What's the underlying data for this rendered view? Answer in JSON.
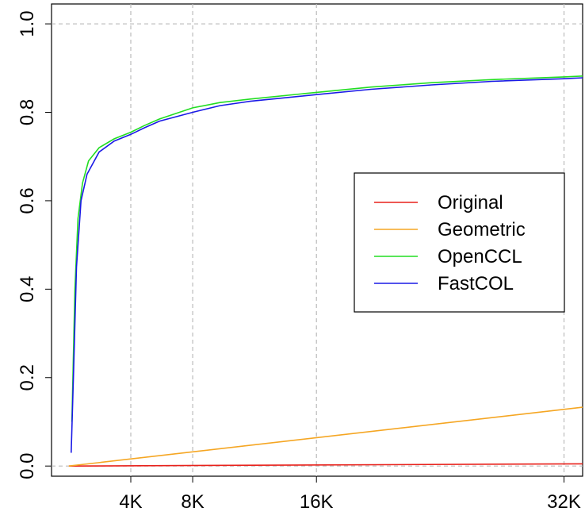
{
  "chart_data": {
    "type": "line",
    "xlim": [
      -1150,
      34000
    ],
    "ylim": [
      -0.023,
      1.045
    ],
    "xticks": [
      {
        "value": 4096,
        "label": "4K"
      },
      {
        "value": 8192,
        "label": "8K"
      },
      {
        "value": 16384,
        "label": "16K"
      },
      {
        "value": 32768,
        "label": "32K"
      }
    ],
    "yticks": [
      {
        "value": 0,
        "label": "0.0"
      },
      0.2,
      0.4,
      0.6,
      0.8,
      {
        "value": 1,
        "label": "1.0"
      }
    ],
    "h_reference_lines": [
      0,
      1
    ],
    "grid": true,
    "legend_position": "right",
    "series": [
      {
        "name": "Original",
        "color": "#e8211b",
        "x": [
          0,
          34000
        ],
        "values": [
          0,
          0.005
        ]
      },
      {
        "name": "Geometric",
        "color": "#f5a623",
        "x": [
          0,
          34000
        ],
        "values": [
          0,
          0.133
        ]
      },
      {
        "name": "OpenCCL",
        "color": "#22dd22",
        "x": [
          200,
          400,
          600,
          900,
          1300,
          2000,
          3000,
          4096,
          5000,
          6000,
          8192,
          10000,
          12000,
          16384,
          20000,
          24000,
          28000,
          32768,
          34000
        ],
        "values": [
          0.1,
          0.4,
          0.56,
          0.64,
          0.69,
          0.72,
          0.74,
          0.755,
          0.77,
          0.785,
          0.81,
          0.822,
          0.83,
          0.845,
          0.857,
          0.867,
          0.874,
          0.88,
          0.882
        ]
      },
      {
        "name": "FastCOL",
        "color": "#1a1ae6",
        "x": [
          150,
          300,
          500,
          800,
          1200,
          2000,
          3000,
          4096,
          5000,
          6000,
          8192,
          10000,
          12000,
          16384,
          20000,
          24000,
          28000,
          32768,
          34000
        ],
        "values": [
          0.03,
          0.2,
          0.45,
          0.6,
          0.66,
          0.71,
          0.735,
          0.75,
          0.765,
          0.78,
          0.8,
          0.815,
          0.825,
          0.84,
          0.852,
          0.862,
          0.87,
          0.876,
          0.878
        ]
      }
    ]
  }
}
